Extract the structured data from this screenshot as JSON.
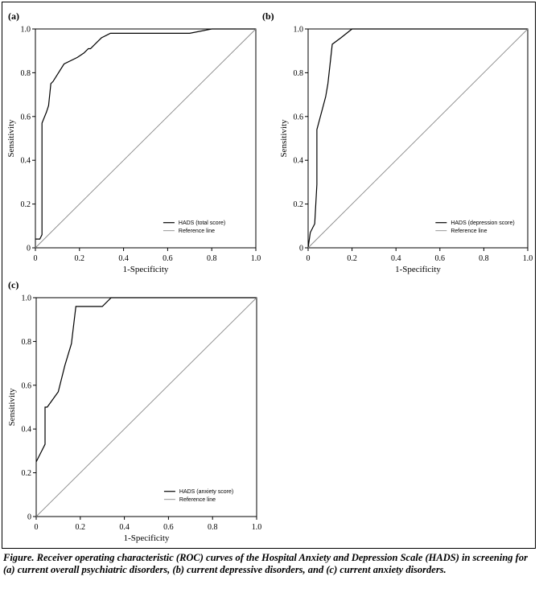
{
  "caption": "Figure.  Receiver operating characteristic (ROC) curves of the Hospital Anxiety and Depression Scale (HADS) in screening for (a) current overall psychiatric disorders, (b) current depressive disorders, and (c) current anxiety disorders.",
  "chart_data": [
    {
      "type": "line",
      "panel": "(a)",
      "xlabel": "1-Specificity",
      "ylabel": "Sensitivity",
      "xlim": [
        0,
        1
      ],
      "ylim": [
        0,
        1
      ],
      "xticks": [
        "0",
        "0.2",
        "0.4",
        "0.6",
        "0.8",
        "1.0"
      ],
      "yticks": [
        "0",
        "0.2",
        "0.4",
        "0.6",
        "0.8",
        "1.0"
      ],
      "legend_position": "bottom-right",
      "series": [
        {
          "name": "HADS (total score)",
          "color": "#000000",
          "x": [
            0,
            0.02,
            0.03,
            0.03,
            0.05,
            0.06,
            0.07,
            0.08,
            0.13,
            0.19,
            0.22,
            0.24,
            0.25,
            0.26,
            0.28,
            0.3,
            0.32,
            0.34,
            0.4,
            0.5,
            0.6,
            0.7,
            0.8,
            1.0
          ],
          "y": [
            0.04,
            0.04,
            0.06,
            0.57,
            0.62,
            0.65,
            0.75,
            0.76,
            0.84,
            0.87,
            0.89,
            0.91,
            0.91,
            0.92,
            0.94,
            0.96,
            0.97,
            0.98,
            0.98,
            0.98,
            0.98,
            0.98,
            1.0,
            1.0
          ]
        },
        {
          "name": "Reference line",
          "color": "#888888",
          "x": [
            0,
            1
          ],
          "y": [
            0,
            1
          ]
        }
      ]
    },
    {
      "type": "line",
      "panel": "(b)",
      "xlabel": "1-Specificity",
      "ylabel": "Sensitivity",
      "xlim": [
        0,
        1
      ],
      "ylim": [
        0,
        1
      ],
      "xticks": [
        "0",
        "0.2",
        "0.4",
        "0.6",
        "0.8",
        "1.0"
      ],
      "yticks": [
        "0",
        "0.2",
        "0.4",
        "0.6",
        "0.8",
        "1.0"
      ],
      "legend_position": "bottom-right",
      "series": [
        {
          "name": "HADS (depression score)",
          "color": "#000000",
          "x": [
            0,
            0.01,
            0.03,
            0.04,
            0.04,
            0.08,
            0.09,
            0.11,
            0.15,
            0.2,
            1.0
          ],
          "y": [
            0.0,
            0.07,
            0.11,
            0.29,
            0.54,
            0.69,
            0.75,
            0.93,
            0.96,
            1.0,
            1.0
          ]
        },
        {
          "name": "Reference line",
          "color": "#888888",
          "x": [
            0,
            1
          ],
          "y": [
            0,
            1
          ]
        }
      ]
    },
    {
      "type": "line",
      "panel": "(c)",
      "xlabel": "1-Specificity",
      "ylabel": "Sensitivity",
      "xlim": [
        0,
        1
      ],
      "ylim": [
        0,
        1
      ],
      "xticks": [
        "0",
        "0.2",
        "0.4",
        "0.6",
        "0.8",
        "1.0"
      ],
      "yticks": [
        "0",
        "0.2",
        "0.4",
        "0.6",
        "0.8",
        "1.0"
      ],
      "legend_position": "bottom-right",
      "series": [
        {
          "name": "HADS (anxiety score)",
          "color": "#000000",
          "x": [
            0,
            0.02,
            0.04,
            0.04,
            0.05,
            0.1,
            0.13,
            0.16,
            0.18,
            0.3,
            0.34,
            1.0
          ],
          "y": [
            0.25,
            0.29,
            0.33,
            0.5,
            0.5,
            0.57,
            0.69,
            0.79,
            0.96,
            0.96,
            1.0,
            1.0
          ]
        },
        {
          "name": "Reference line",
          "color": "#888888",
          "x": [
            0,
            1
          ],
          "y": [
            0,
            1
          ]
        }
      ]
    }
  ]
}
